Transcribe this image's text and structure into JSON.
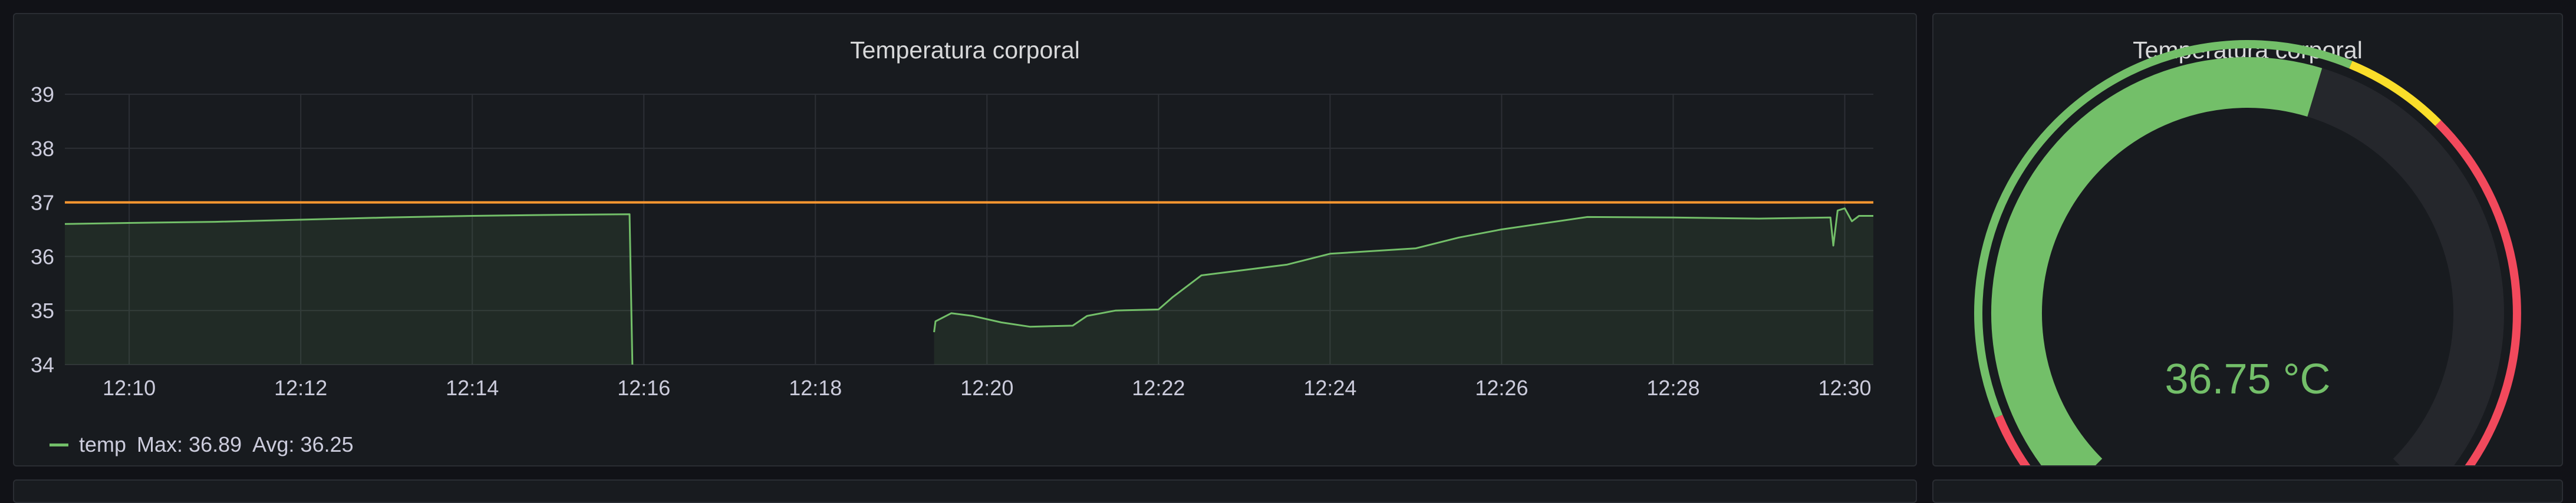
{
  "graph_panel": {
    "title": "Temperatura corporal"
  },
  "gauge_panel": {
    "title": "Temperatura corporal",
    "value_text": "36.75 °C",
    "value": 36.75,
    "min": 30,
    "max": 42,
    "thresholds": [
      {
        "color": "#f2495c",
        "from": 30,
        "to": 31
      },
      {
        "color": "#73bf69",
        "from": 31,
        "to": 37
      },
      {
        "color": "#fade2a",
        "from": 37,
        "to": 38
      },
      {
        "color": "#f2495c",
        "from": 38,
        "to": 42
      }
    ],
    "value_color": "#73bf69"
  },
  "legend": {
    "series_name": "temp",
    "max_label": "Max: 36.89",
    "avg_label": "Avg: 36.25"
  },
  "chart_data": {
    "type": "line",
    "title": "Temperatura corporal",
    "xlabel": "",
    "ylabel": "",
    "ylim": [
      34,
      39
    ],
    "y_ticks": [
      "34",
      "35",
      "36",
      "37",
      "38",
      "39"
    ],
    "x_ticks": [
      "12:10",
      "12:12",
      "12:14",
      "12:16",
      "12:18",
      "12:20",
      "12:22",
      "12:24",
      "12:26",
      "12:28",
      "12:30"
    ],
    "x_range": [
      "12:09:15",
      "12:30:20"
    ],
    "threshold_line": {
      "value": 37,
      "color": "#ff9830"
    },
    "grid": true,
    "series": [
      {
        "name": "temp",
        "color": "#73bf69",
        "segments": [
          [
            [
              "12:09:15",
              36.6
            ],
            [
              "12:10:00",
              36.62
            ],
            [
              "12:11:00",
              36.64
            ],
            [
              "12:12:00",
              36.68
            ],
            [
              "12:13:00",
              36.72
            ],
            [
              "12:14:00",
              36.75
            ],
            [
              "12:15:00",
              36.77
            ],
            [
              "12:15:50",
              36.78
            ],
            [
              "12:15:52",
              34.0
            ]
          ],
          [
            [
              "12:19:23",
              34.6
            ],
            [
              "12:19:24",
              34.8
            ],
            [
              "12:19:35",
              34.95
            ],
            [
              "12:19:50",
              34.9
            ],
            [
              "12:20:10",
              34.78
            ],
            [
              "12:20:30",
              34.7
            ],
            [
              "12:21:00",
              34.72
            ],
            [
              "12:21:10",
              34.9
            ],
            [
              "12:21:30",
              35.0
            ],
            [
              "12:22:00",
              35.02
            ],
            [
              "12:22:10",
              35.25
            ],
            [
              "12:22:30",
              35.65
            ],
            [
              "12:23:00",
              35.75
            ],
            [
              "12:23:30",
              35.85
            ],
            [
              "12:24:00",
              36.05
            ],
            [
              "12:25:00",
              36.15
            ],
            [
              "12:25:30",
              36.35
            ],
            [
              "12:26:00",
              36.5
            ],
            [
              "12:27:00",
              36.73
            ],
            [
              "12:28:00",
              36.72
            ],
            [
              "12:29:00",
              36.7
            ],
            [
              "12:29:50",
              36.72
            ],
            [
              "12:29:52",
              36.2
            ],
            [
              "12:29:55",
              36.85
            ],
            [
              "12:30:00",
              36.89
            ],
            [
              "12:30:05",
              36.65
            ],
            [
              "12:30:10",
              36.75
            ],
            [
              "12:30:20",
              36.75
            ]
          ]
        ]
      }
    ]
  }
}
